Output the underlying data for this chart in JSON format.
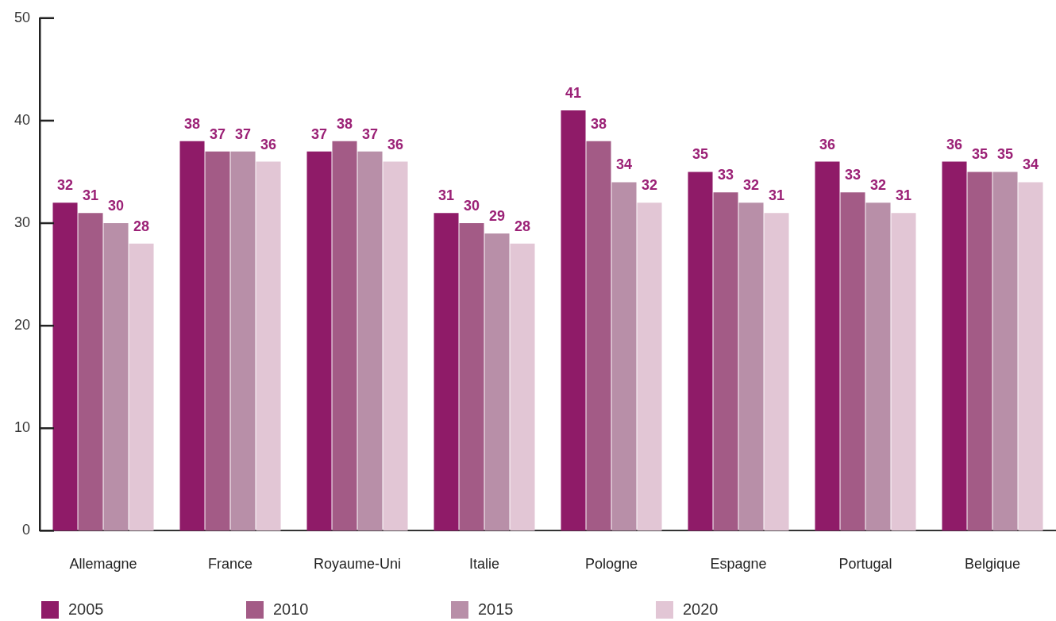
{
  "chart_data": {
    "type": "bar",
    "categories": [
      "Allemagne",
      "France",
      "Royaume-Uni",
      "Italie",
      "Pologne",
      "Espagne",
      "Portugal",
      "Belgique"
    ],
    "series": [
      {
        "name": "2005",
        "color": "#8f1b68",
        "values": [
          32,
          38,
          37,
          31,
          41,
          35,
          36,
          36
        ]
      },
      {
        "name": "2010",
        "color": "#a35b86",
        "values": [
          31,
          37,
          38,
          30,
          38,
          33,
          33,
          35
        ]
      },
      {
        "name": "2015",
        "color": "#b88fa8",
        "values": [
          30,
          37,
          37,
          29,
          34,
          32,
          32,
          35
        ]
      },
      {
        "name": "2020",
        "color": "#e2c6d5",
        "values": [
          28,
          36,
          36,
          28,
          32,
          31,
          31,
          34
        ]
      }
    ],
    "ylim": [
      0,
      50
    ],
    "yticks": [
      0,
      10,
      20,
      30,
      40,
      50
    ],
    "grid": false,
    "legend": "bottom left",
    "data_labels": true
  }
}
